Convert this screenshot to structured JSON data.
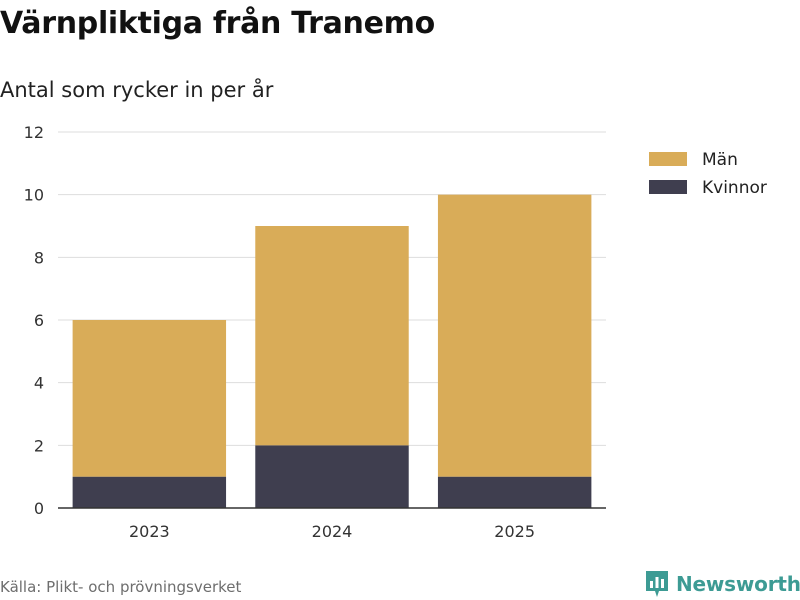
{
  "title": "Värnpliktiga från Tranemo",
  "subtitle": "Antal som rycker in per år",
  "source": "Källa: Plikt- och prövningsverket",
  "logo_text": "Newsworthy",
  "colors": {
    "men": "#d9ac58",
    "women": "#3f3e4f",
    "logo": "#3d9b94",
    "grid": "#dddddd"
  },
  "chart_data": {
    "type": "bar",
    "stacked": true,
    "categories": [
      "2023",
      "2024",
      "2025"
    ],
    "series": [
      {
        "name": "Kvinnor",
        "color": "#3f3e4f",
        "values": [
          1,
          2,
          1
        ]
      },
      {
        "name": "Män",
        "color": "#d9ac58",
        "values": [
          5,
          7,
          9
        ]
      }
    ],
    "legend_order": [
      "Män",
      "Kvinnor"
    ],
    "ylim": [
      0,
      12
    ],
    "yticks": [
      0,
      2,
      4,
      6,
      8,
      10,
      12
    ],
    "grid": true,
    "legend_position": "top-right"
  }
}
